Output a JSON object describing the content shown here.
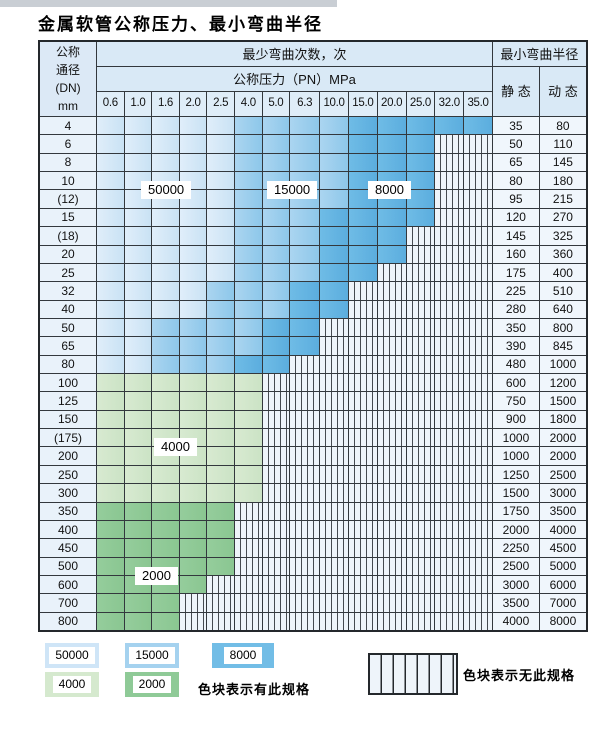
{
  "title": "金属软管公称压力、最小弯曲半径",
  "table": {
    "dn_header_lines": [
      "公称",
      "通径",
      "(DN)",
      "mm"
    ],
    "bend_cycles_header": "最少弯曲次数，次",
    "pressure_header": "公称压力（PN）MPa",
    "pressures": [
      "0.6",
      "1.0",
      "1.6",
      "2.0",
      "2.5",
      "4.0",
      "5.0",
      "6.3",
      "10.0",
      "15.0",
      "20.0",
      "25.0",
      "32.0",
      "35.0"
    ],
    "radius_header": "最小弯曲半径",
    "static_header": "静 态",
    "dynamic_header": "动 态",
    "rows": [
      {
        "dn": "4",
        "zones": {
          "b1": 5,
          "b2": 4,
          "b3": 5
        },
        "static": "35",
        "dynamic": "80"
      },
      {
        "dn": "6",
        "zones": {
          "b1": 5,
          "b2": 4,
          "b3": 3
        },
        "static": "50",
        "dynamic": "110"
      },
      {
        "dn": "8",
        "zones": {
          "b1": 5,
          "b2": 4,
          "b3": 3
        },
        "static": "65",
        "dynamic": "145"
      },
      {
        "dn": "10",
        "zones": {
          "b1": 5,
          "b2": 4,
          "b3": 3
        },
        "static": "80",
        "dynamic": "180"
      },
      {
        "dn": "(12)",
        "zones": {
          "b1": 5,
          "b2": 4,
          "b3": 3
        },
        "static": "95",
        "dynamic": "215"
      },
      {
        "dn": "15",
        "zones": {
          "b1": 5,
          "b2": 3,
          "b3": 4
        },
        "static": "120",
        "dynamic": "270"
      },
      {
        "dn": "(18)",
        "zones": {
          "b1": 5,
          "b2": 3,
          "b3": 3
        },
        "static": "145",
        "dynamic": "325"
      },
      {
        "dn": "20",
        "zones": {
          "b1": 5,
          "b2": 3,
          "b3": 3
        },
        "static": "160",
        "dynamic": "360"
      },
      {
        "dn": "25",
        "zones": {
          "b1": 5,
          "b2": 3,
          "b3": 2
        },
        "static": "175",
        "dynamic": "400"
      },
      {
        "dn": "32",
        "zones": {
          "b1": 4,
          "b2": 3,
          "b3": 2
        },
        "static": "225",
        "dynamic": "510"
      },
      {
        "dn": "40",
        "zones": {
          "b1": 4,
          "b2": 3,
          "b3": 2
        },
        "static": "280",
        "dynamic": "640"
      },
      {
        "dn": "50",
        "zones": {
          "b1": 2,
          "b2": 4,
          "b3": 2
        },
        "static": "350",
        "dynamic": "800"
      },
      {
        "dn": "65",
        "zones": {
          "b1": 2,
          "b2": 4,
          "b3": 2
        },
        "static": "390",
        "dynamic": "845"
      },
      {
        "dn": "80",
        "zones": {
          "b1": 2,
          "b2": 3,
          "b3": 2
        },
        "static": "480",
        "dynamic": "1000"
      },
      {
        "dn": "100",
        "zones": {
          "g1": 6
        },
        "static": "600",
        "dynamic": "1200"
      },
      {
        "dn": "125",
        "zones": {
          "g1": 6
        },
        "static": "750",
        "dynamic": "1500"
      },
      {
        "dn": "150",
        "zones": {
          "g1": 6
        },
        "static": "900",
        "dynamic": "1800"
      },
      {
        "dn": "(175)",
        "zones": {
          "g1": 6
        },
        "static": "1000",
        "dynamic": "2000"
      },
      {
        "dn": "200",
        "zones": {
          "g1": 6
        },
        "static": "1000",
        "dynamic": "2000"
      },
      {
        "dn": "250",
        "zones": {
          "g1": 6
        },
        "static": "1250",
        "dynamic": "2500"
      },
      {
        "dn": "300",
        "zones": {
          "g1": 6
        },
        "static": "1500",
        "dynamic": "3000"
      },
      {
        "dn": "350",
        "zones": {
          "g2": 5
        },
        "static": "1750",
        "dynamic": "3500"
      },
      {
        "dn": "400",
        "zones": {
          "g2": 5
        },
        "static": "2000",
        "dynamic": "4000"
      },
      {
        "dn": "450",
        "zones": {
          "g2": 5
        },
        "static": "2250",
        "dynamic": "4500"
      },
      {
        "dn": "500",
        "zones": {
          "g2": 5
        },
        "static": "2500",
        "dynamic": "5000"
      },
      {
        "dn": "600",
        "zones": {
          "g2": 4
        },
        "static": "3000",
        "dynamic": "6000"
      },
      {
        "dn": "700",
        "zones": {
          "g2": 3
        },
        "static": "3500",
        "dynamic": "7000"
      },
      {
        "dn": "800",
        "zones": {
          "g2": 3
        },
        "static": "4000",
        "dynamic": "8000"
      }
    ]
  },
  "zone_labels": {
    "z50000": "50000",
    "z15000": "15000",
    "z8000": "8000",
    "z4000": "4000",
    "z2000": "2000"
  },
  "legend": {
    "items": [
      {
        "label": "50000",
        "color": "#cfe5f7"
      },
      {
        "label": "15000",
        "color": "#a5d2ef"
      },
      {
        "label": "8000",
        "color": "#72bde6"
      },
      {
        "label": "4000",
        "color": "#d5e9ce"
      },
      {
        "label": "2000",
        "color": "#8fca97"
      }
    ],
    "has_spec_text": "色块表示有此规格",
    "no_spec_text": "色块表示无此规格"
  },
  "colors": {
    "zone_50000": "#cfe5f7",
    "zone_15000": "#a5d2ef",
    "zone_8000": "#72bde6",
    "zone_4000": "#d5e9ce",
    "zone_2000": "#8fca97",
    "no_spec_background": "#eef4fa",
    "header_background": "#d9e9f6",
    "grid_line": "#33383d"
  }
}
